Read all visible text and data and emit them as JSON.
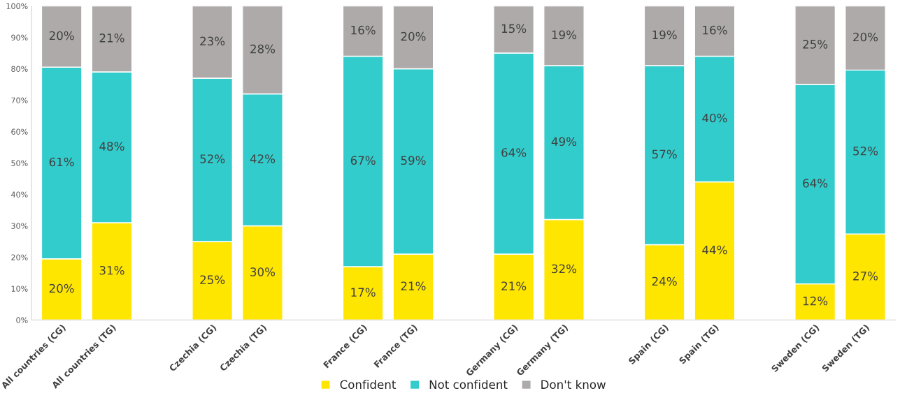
{
  "chart_data": {
    "type": "bar",
    "stacked": true,
    "categories": [
      "All countries (CG)",
      "All countries (TG)",
      null,
      "Czechia (CG)",
      "Czechia (TG)",
      null,
      "France (CG)",
      "France (TG)",
      null,
      "Germany (CG)",
      "Germany (TG)",
      null,
      "Spain (CG)",
      "Spain (TG)",
      null,
      "Sweden (CG)",
      "Sweden (TG)"
    ],
    "series": [
      {
        "name": "Confident",
        "color": "#ffe600",
        "values": [
          19.5,
          31,
          null,
          25,
          30,
          null,
          17,
          21,
          null,
          21,
          32,
          null,
          24,
          44,
          null,
          11.5,
          27.4
        ],
        "value_labels": [
          "20%",
          "31%",
          null,
          "25%",
          "30%",
          null,
          "17%",
          "21%",
          null,
          "21%",
          "32%",
          null,
          "24%",
          "44%",
          null,
          "12%",
          "27%"
        ]
      },
      {
        "name": "Not confident",
        "color": "#33cccc",
        "values": [
          61,
          48,
          null,
          52,
          42,
          null,
          67,
          59,
          null,
          64,
          49,
          null,
          57,
          40,
          null,
          63.5,
          52.2
        ],
        "value_labels": [
          "61%",
          "48%",
          null,
          "52%",
          "42%",
          null,
          "67%",
          "59%",
          null,
          "64%",
          "49%",
          null,
          "57%",
          "40%",
          null,
          "64%",
          "52%"
        ]
      },
      {
        "name": "Don't know",
        "color": "#aeaaaa",
        "values": [
          19.5,
          21,
          null,
          23,
          28,
          null,
          16,
          20,
          null,
          15,
          19,
          null,
          19,
          16,
          null,
          25,
          20.4
        ],
        "value_labels": [
          "20%",
          "21%",
          null,
          "23%",
          "28%",
          null,
          "16%",
          "20%",
          null,
          "15%",
          "19%",
          null,
          "19%",
          "16%",
          null,
          "25%",
          "20%"
        ]
      }
    ],
    "ylim": [
      0,
      100
    ],
    "yticks": [
      {
        "value": 0,
        "label": "0%"
      },
      {
        "value": 10,
        "label": "10%"
      },
      {
        "value": 20,
        "label": "20%"
      },
      {
        "value": 30,
        "label": "30%"
      },
      {
        "value": 40,
        "label": "40%"
      },
      {
        "value": 50,
        "label": "50%"
      },
      {
        "value": 60,
        "label": "60%"
      },
      {
        "value": 70,
        "label": "70%"
      },
      {
        "value": 80,
        "label": "80%"
      },
      {
        "value": 90,
        "label": "90%"
      },
      {
        "value": 100,
        "label": "100%"
      }
    ],
    "legend": "bottom",
    "grid": false
  }
}
